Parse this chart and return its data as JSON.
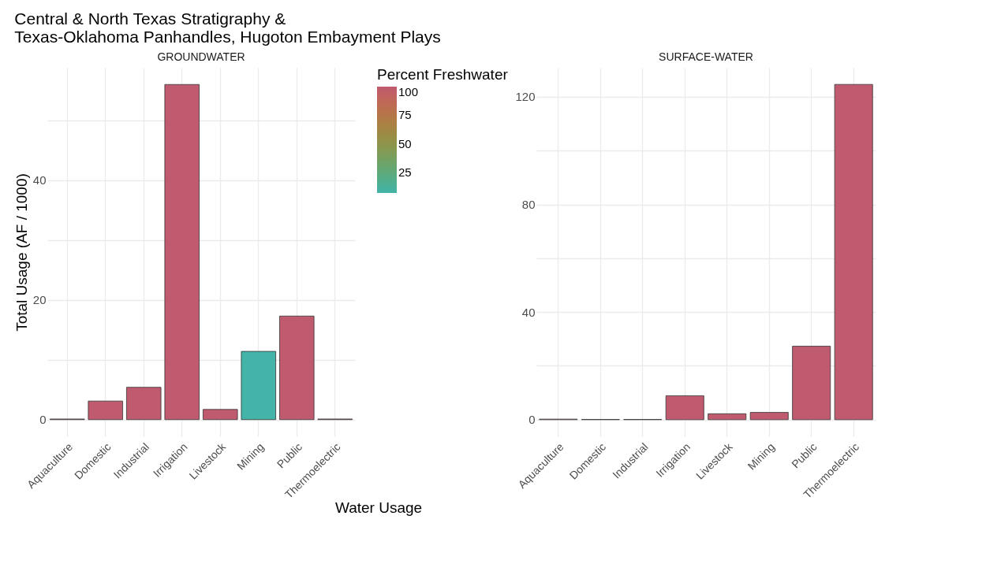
{
  "chart_data": [
    {
      "type": "bar",
      "title": "Central & North Texas Stratigraphy &\n    Texas-Oklahoma Panhandles, Hugoton Embayment Plays",
      "subtitle": "GROUNDWATER",
      "xlabel": "Water Usage",
      "ylabel": "Total Usage (AF / 1000)",
      "categories": [
        "Aquaculture",
        "Domestic",
        "Industrial",
        "Irrigation",
        "Livestock",
        "Mining",
        "Public",
        "Thermoelectric"
      ],
      "values": [
        0.1,
        3.1,
        5.4,
        56.0,
        1.7,
        11.4,
        17.3,
        0.1
      ],
      "cvalues": [
        100,
        100,
        100,
        100,
        100,
        7,
        100,
        100
      ],
      "colors": [
        "#c05a6f",
        "#c05a6f",
        "#c05a6f",
        "#c05a6f",
        "#c05a6f",
        "#44b3a8",
        "#c05a6f",
        "#c05a6f"
      ],
      "clim": [
        7,
        100
      ],
      "cticks": [
        25,
        50,
        75,
        100
      ],
      "legend_title": "Percent Freshwater",
      "ylim": [
        -2.8,
        58.8
      ],
      "yticks": [
        0,
        {
          "value": 10,
          "label": null
        },
        20,
        {
          "value": 30,
          "label": null
        },
        40,
        {
          "value": 50,
          "label": null
        }
      ],
      "grid": true
    },
    {
      "type": "bar",
      "subtitle": "SURFACE-WATER",
      "categories": [
        "Aquaculture",
        "Domestic",
        "Industrial",
        "Irrigation",
        "Livestock",
        "Mining",
        "Public",
        "Thermoelectric"
      ],
      "values": [
        0.2,
        0.1,
        0.1,
        8.9,
        2.2,
        2.7,
        27.3,
        124.6
      ],
      "colors": [
        "#c05a6f",
        "#c05a6f",
        "#c05a6f",
        "#c05a6f",
        "#c05a6f",
        "#c05a6f",
        "#c05a6f",
        "#c05a6f"
      ],
      "ylim": [
        -6.2,
        130.8
      ],
      "yticks": [
        0,
        {
          "value": 20,
          "label": null
        },
        40,
        {
          "value": 60,
          "label": null
        },
        80,
        {
          "value": 100,
          "label": null
        },
        120
      ],
      "grid": true
    }
  ]
}
